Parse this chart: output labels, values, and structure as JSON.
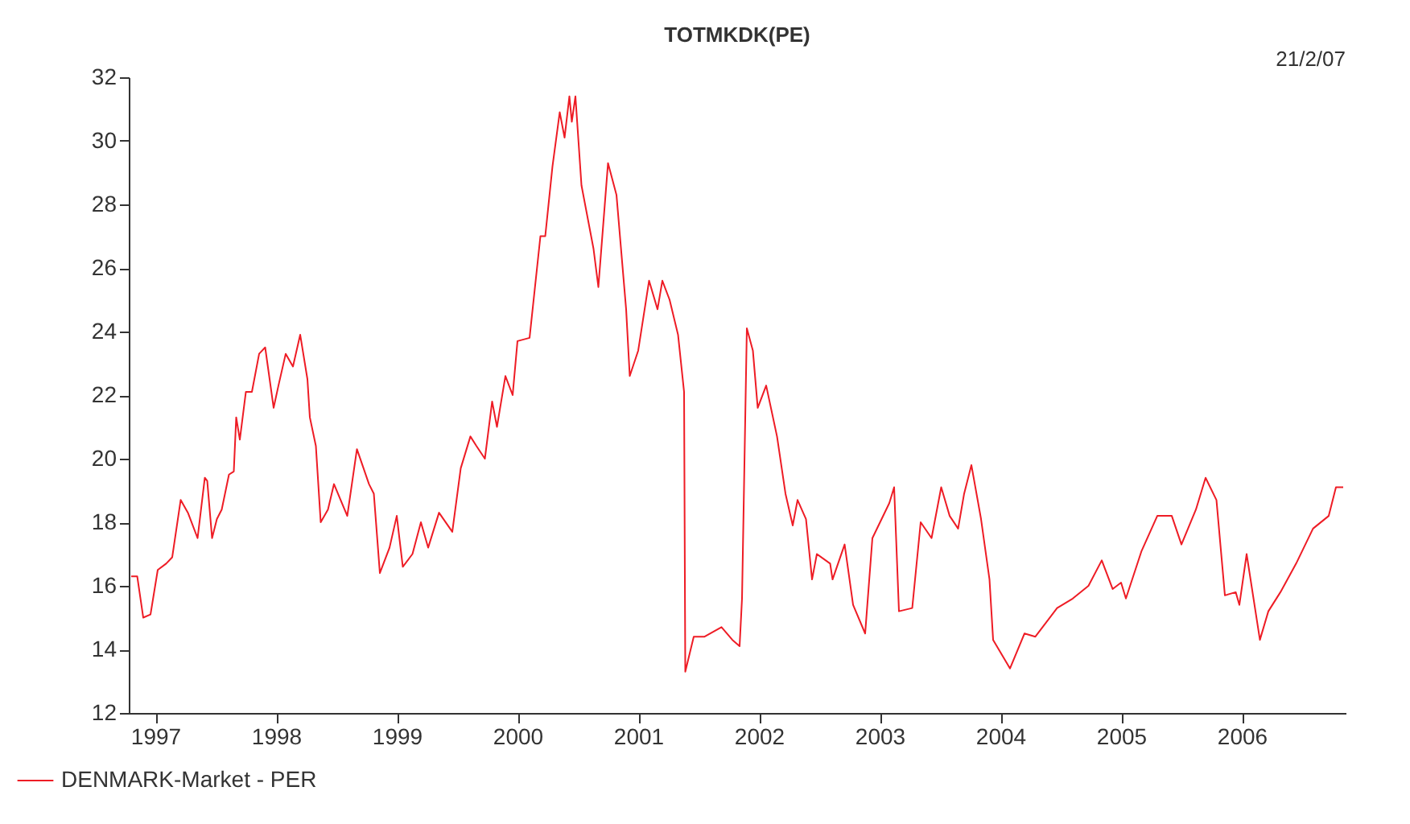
{
  "chart_data": {
    "type": "line",
    "title": "TOTMKDK(PE)",
    "annotations": [
      "21/2/07"
    ],
    "xlim": [
      1997.28,
      2007.36
    ],
    "xticks": [
      {
        "value": 1997.5,
        "label": "1997"
      },
      {
        "value": 1998.5,
        "label": "1998"
      },
      {
        "value": 1999.5,
        "label": "1999"
      },
      {
        "value": 2000.5,
        "label": "2000"
      },
      {
        "value": 2001.5,
        "label": "2001"
      },
      {
        "value": 2002.5,
        "label": "2002"
      },
      {
        "value": 2003.5,
        "label": "2003"
      },
      {
        "value": 2004.5,
        "label": "2004"
      },
      {
        "value": 2005.5,
        "label": "2005"
      },
      {
        "value": 2006.5,
        "label": "2006"
      }
    ],
    "ylim": [
      12,
      32
    ],
    "yticks": [
      12,
      14,
      16,
      18,
      20,
      22,
      24,
      26,
      28,
      30,
      32
    ],
    "grid": false,
    "legend": "bottom left",
    "marker": "none",
    "line_style": "solid",
    "x": [
      1997.3,
      1997.35,
      1997.4,
      1997.46,
      1997.52,
      1997.59,
      1997.64,
      1997.71,
      1997.77,
      1997.85,
      1997.91,
      1997.93,
      1997.97,
      1998.01,
      1998.05,
      1998.11,
      1998.15,
      1998.17,
      1998.2,
      1998.25,
      1998.3,
      1998.36,
      1998.41,
      1998.48,
      1998.52,
      1998.58,
      1998.64,
      1998.7,
      1998.76,
      1998.78,
      1998.83,
      1998.87,
      1998.93,
      1998.98,
      1999.09,
      1999.17,
      1999.27,
      1999.31,
      1999.36,
      1999.44,
      1999.5,
      1999.55,
      1999.63,
      1999.7,
      1999.76,
      1999.85,
      1999.96,
      2000.03,
      2000.11,
      2000.16,
      2000.23,
      2000.29,
      2000.33,
      2000.4,
      2000.46,
      2000.5,
      2000.6,
      2000.69,
      2000.73,
      2000.79,
      2000.85,
      2000.89,
      2000.93,
      2000.95,
      2000.98,
      2001.03,
      2001.13,
      2001.17,
      2001.25,
      2001.32,
      2001.4,
      2001.43,
      2001.5,
      2001.59,
      2001.66,
      2001.7,
      2001.76,
      2001.83,
      2001.88,
      2001.89,
      2001.96,
      2002.05,
      2002.19,
      2002.28,
      2002.34,
      2002.36,
      2002.4,
      2002.45,
      2002.49,
      2002.56,
      2002.65,
      2002.72,
      2002.78,
      2002.82,
      2002.89,
      2002.94,
      2002.98,
      2003.09,
      2003.11,
      2003.21,
      2003.28,
      2003.38,
      2003.44,
      2003.58,
      2003.62,
      2003.66,
      2003.77,
      2003.84,
      2003.93,
      2004.01,
      2004.08,
      2004.15,
      2004.2,
      2004.26,
      2004.34,
      2004.41,
      2004.44,
      2004.58,
      2004.7,
      2004.79,
      2004.97,
      2005.1,
      2005.23,
      2005.34,
      2005.43,
      2005.5,
      2005.54,
      2005.67,
      2005.8,
      2005.92,
      2006.0,
      2006.12,
      2006.2,
      2006.29,
      2006.36,
      2006.45,
      2006.48,
      2006.54,
      2006.65,
      2006.72,
      2006.82,
      2006.95,
      2007.09,
      2007.22,
      2007.28,
      2007.34
    ],
    "series": [
      {
        "name": "DENMARK-Market - PER",
        "color": "#ee1c25",
        "values": [
          16.3,
          16.3,
          15.0,
          15.1,
          16.5,
          16.7,
          16.9,
          18.7,
          18.3,
          17.5,
          19.4,
          19.3,
          17.5,
          18.1,
          18.4,
          19.5,
          19.6,
          21.3,
          20.6,
          22.1,
          22.1,
          23.3,
          23.5,
          21.6,
          22.3,
          23.3,
          22.9,
          23.9,
          22.5,
          21.3,
          20.4,
          18.0,
          18.4,
          19.2,
          18.2,
          20.3,
          19.2,
          18.9,
          16.4,
          17.2,
          18.2,
          16.6,
          17.0,
          18.0,
          17.2,
          18.3,
          17.7,
          19.7,
          20.7,
          20.4,
          20.0,
          21.8,
          21.0,
          22.6,
          22.0,
          23.7,
          23.8,
          27.0,
          27.0,
          29.2,
          30.9,
          30.1,
          31.4,
          30.6,
          31.4,
          28.6,
          26.6,
          25.4,
          29.3,
          28.3,
          24.7,
          22.6,
          23.4,
          25.6,
          24.7,
          25.6,
          25.0,
          23.9,
          22.1,
          13.3,
          14.4,
          14.4,
          14.7,
          14.3,
          14.1,
          15.6,
          24.1,
          23.4,
          21.6,
          22.3,
          20.7,
          18.9,
          17.9,
          18.7,
          18.1,
          16.2,
          17.0,
          16.7,
          16.2,
          17.3,
          15.4,
          14.5,
          17.5,
          18.6,
          19.1,
          15.2,
          15.3,
          18.0,
          17.5,
          19.1,
          18.2,
          17.8,
          18.9,
          19.8,
          18.1,
          16.2,
          14.3,
          13.4,
          14.5,
          14.4,
          15.3,
          15.6,
          16.0,
          16.8,
          15.9,
          16.1,
          15.6,
          17.1,
          18.2,
          18.2,
          17.3,
          18.4,
          19.4,
          18.7,
          15.7,
          15.8,
          15.4,
          17.0,
          14.3,
          15.2,
          15.8,
          16.7,
          17.8,
          18.2,
          19.1,
          19.1
        ]
      }
    ]
  }
}
